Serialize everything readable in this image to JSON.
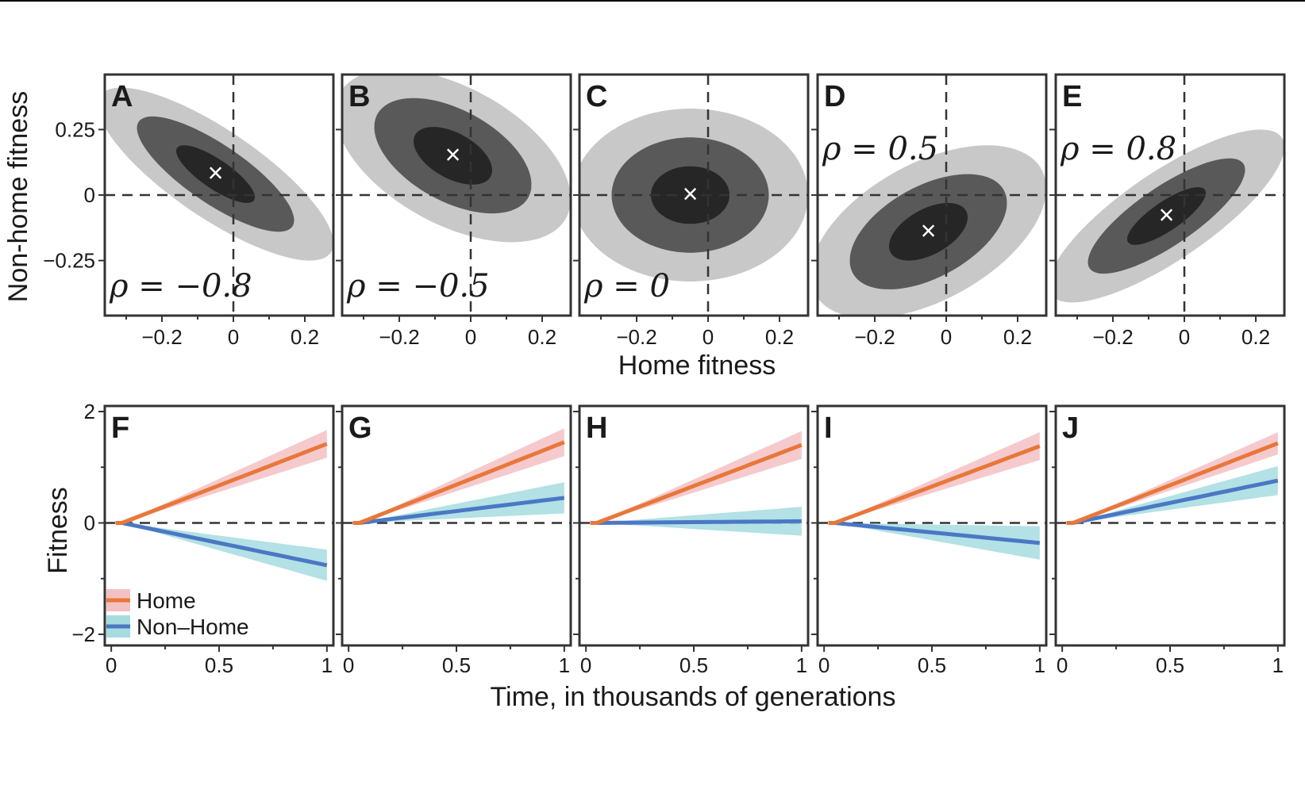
{
  "chart_data": [
    {
      "type": "contour",
      "panels": [
        {
          "label": "A",
          "rho_text": "ρ = −0.8",
          "rho": -0.8,
          "mean": [
            -0.05,
            0.08
          ]
        },
        {
          "label": "B",
          "rho_text": "ρ = −0.5",
          "rho": -0.5,
          "mean": [
            -0.05,
            0.15
          ]
        },
        {
          "label": "C",
          "rho_text": "ρ = 0",
          "rho": 0,
          "mean": [
            -0.05,
            0.0
          ]
        },
        {
          "label": "D",
          "rho_text": "ρ = 0.5",
          "rho": 0.5,
          "mean": [
            -0.05,
            -0.14
          ]
        },
        {
          "label": "E",
          "rho_text": "ρ = 0.8",
          "rho": 0.8,
          "mean": [
            -0.05,
            -0.08
          ]
        }
      ],
      "sd": 0.11,
      "contour_levels_sd": [
        1,
        2,
        3
      ],
      "contour_colors": [
        "#262626",
        "#595959",
        "#c8c8c8"
      ],
      "center_marker": "×",
      "xlabel": "Home fitness",
      "ylabel": "Non-home fitness",
      "xlim": [
        -0.36,
        0.28
      ],
      "ylim": [
        -0.46,
        0.46
      ],
      "xticks": [
        {
          "v": -0.2,
          "label": "−0.2"
        },
        {
          "v": 0,
          "label": "0"
        },
        {
          "v": 0.2,
          "label": "0.2"
        }
      ],
      "yticks": [
        {
          "v": 0.25,
          "label": "0.25"
        },
        {
          "v": 0,
          "label": "0"
        },
        {
          "v": -0.25,
          "label": "−0.25"
        }
      ],
      "reference_lines": {
        "x": 0,
        "y": 0
      }
    },
    {
      "type": "line",
      "panels": [
        {
          "label": "F",
          "home_end": 1.42,
          "home_band": 0.25,
          "nonhome_end": -0.76,
          "nonhome_band": 0.28
        },
        {
          "label": "G",
          "home_end": 1.45,
          "home_band": 0.25,
          "nonhome_end": 0.45,
          "nonhome_band": 0.28
        },
        {
          "label": "H",
          "home_end": 1.4,
          "home_band": 0.25,
          "nonhome_end": 0.03,
          "nonhome_band": 0.26
        },
        {
          "label": "I",
          "home_end": 1.38,
          "home_band": 0.25,
          "nonhome_end": -0.36,
          "nonhome_band": 0.3
        },
        {
          "label": "J",
          "home_end": 1.43,
          "home_band": 0.2,
          "nonhome_end": 0.76,
          "nonhome_band": 0.26
        }
      ],
      "x_start": 0.05,
      "x_end": 1.0,
      "series": [
        {
          "name": "Home",
          "color": "#e8773a",
          "band_color": "#f4c1c3"
        },
        {
          "name": "Non–Home",
          "color": "#4a78c4",
          "band_color": "#a6dce0"
        }
      ],
      "xlabel": "Time, in thousands of generations",
      "ylabel": "Fitness",
      "xlim": [
        -0.03,
        1.03
      ],
      "ylim": [
        -2.2,
        2.1
      ],
      "xticks": [
        {
          "v": 0,
          "label": "0"
        },
        {
          "v": 0.5,
          "label": "0.5"
        },
        {
          "v": 1,
          "label": "1"
        }
      ],
      "yticks": [
        {
          "v": 2,
          "label": "2"
        },
        {
          "v": 0,
          "label": "0"
        },
        {
          "v": -2,
          "label": "−2"
        }
      ],
      "legend_position": "bottom-left of panel F",
      "reference_lines": {
        "y": 0
      }
    }
  ]
}
